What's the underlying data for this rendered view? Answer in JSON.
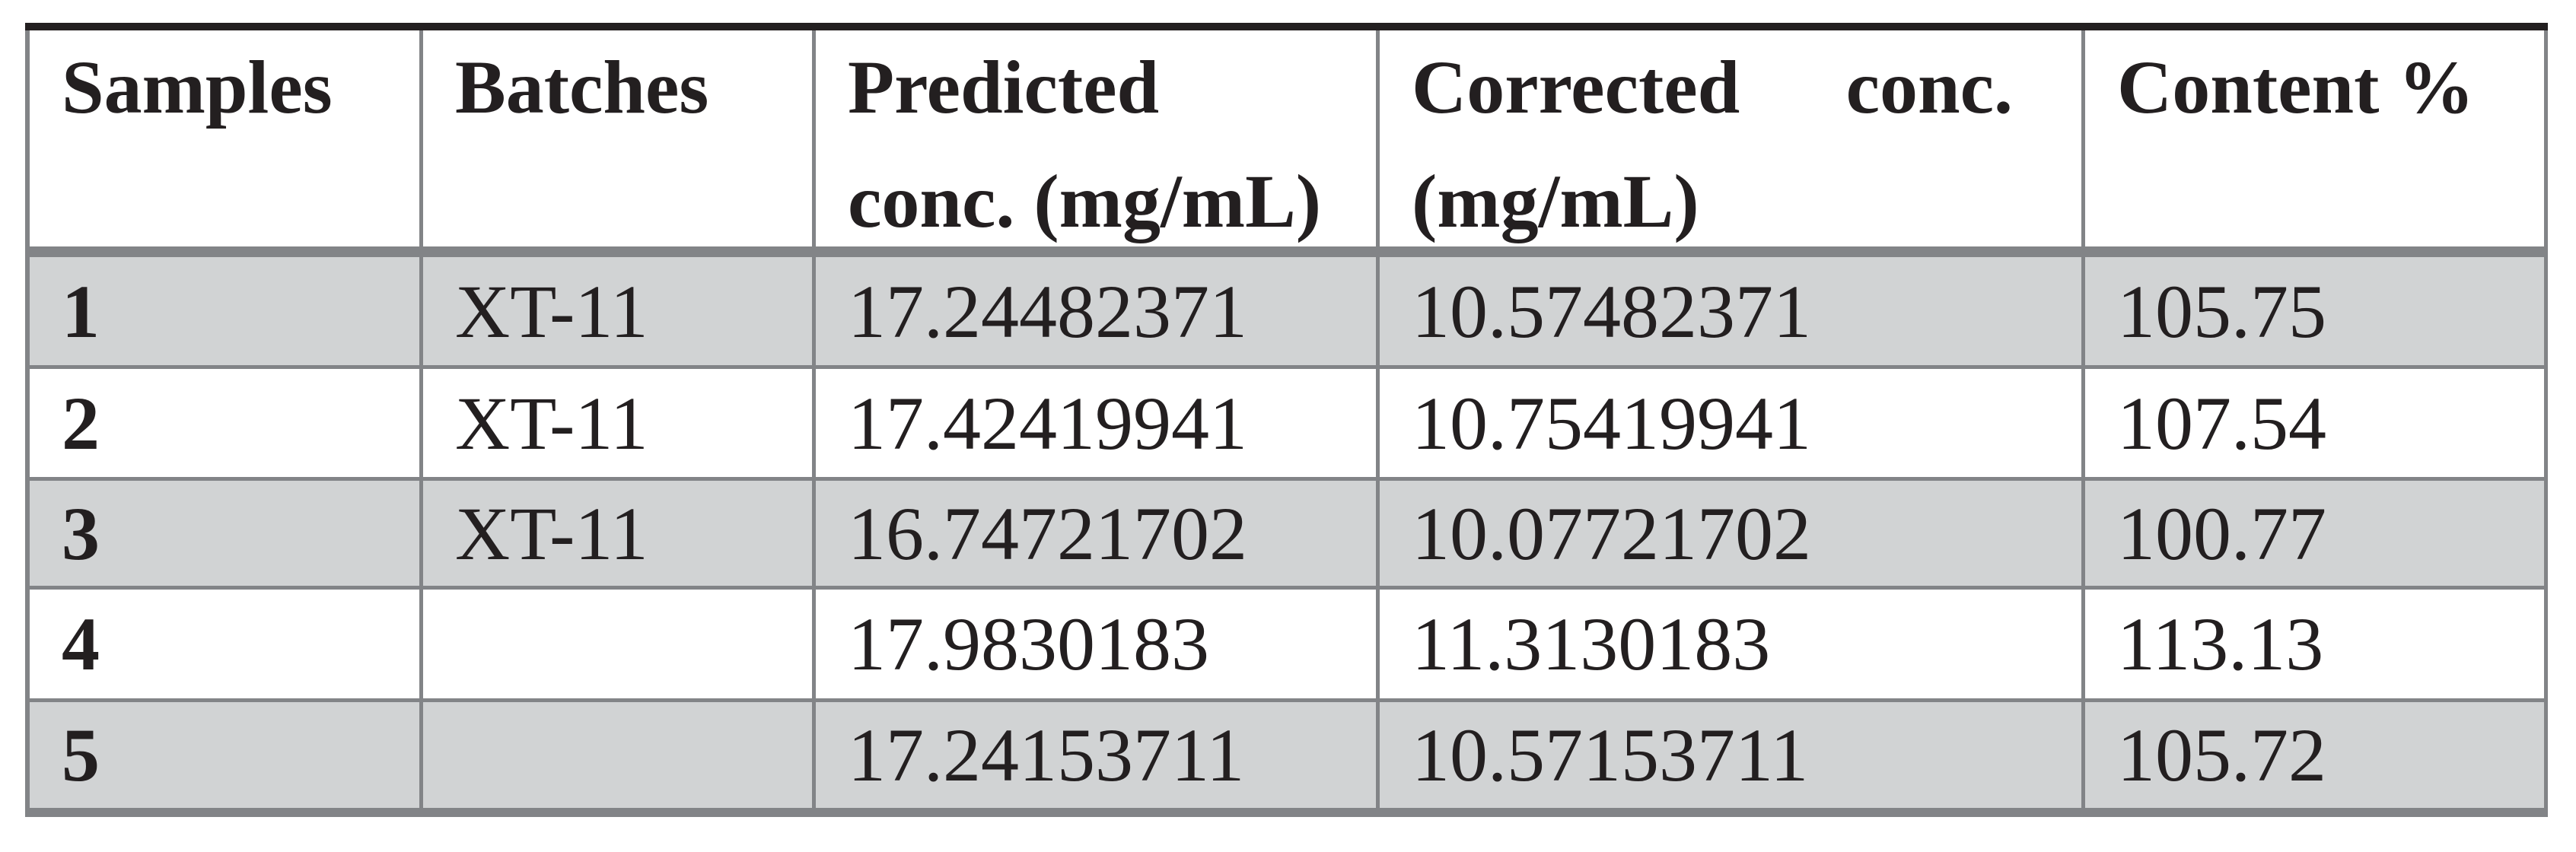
{
  "table": {
    "header": {
      "samples": "Samples",
      "batches": "Batches",
      "predicted_line1": "Predicted",
      "predicted_line2": "conc. (mg/mL)",
      "corrected_line1_word1": "Corrected",
      "corrected_line1_word2": "conc.",
      "corrected_line2": "(mg/mL)",
      "content": "Content %"
    },
    "rows": [
      {
        "sample": "1",
        "batch": "XT-11",
        "predicted": "17.24482371",
        "corrected": "10.57482371",
        "content": "105.75"
      },
      {
        "sample": "2",
        "batch": "XT-11",
        "predicted": "17.42419941",
        "corrected": "10.75419941",
        "content": "107.54"
      },
      {
        "sample": "3",
        "batch": "XT-11",
        "predicted": "16.74721702",
        "corrected": "10.07721702",
        "content": "100.77"
      },
      {
        "sample": "4",
        "batch": "",
        "predicted": "17.9830183",
        "corrected": "11.3130183",
        "content": "113.13"
      },
      {
        "sample": "5",
        "batch": "",
        "predicted": "17.24153711",
        "corrected": "10.57153711",
        "content": "105.72"
      }
    ]
  },
  "colors": {
    "top_border": "#231f20",
    "grid_line": "#828487",
    "row_stripe": "#d1d3d4",
    "text": "#231f20"
  }
}
